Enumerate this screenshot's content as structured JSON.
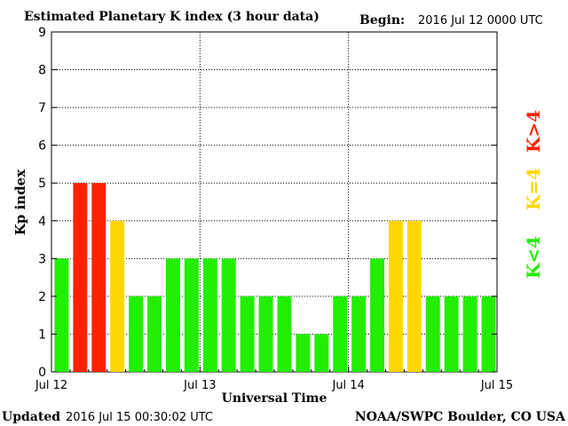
{
  "chart_data": {
    "type": "bar",
    "title": "Estimated Planetary K index (3 hour data)",
    "begin_label": "Begin:",
    "begin_value": "2016 Jul 12 0000 UTC",
    "xlabel": "Universal Time",
    "ylabel": "Kp index",
    "ylim": [
      0,
      9
    ],
    "yticks": [
      "0",
      "1",
      "2",
      "3",
      "4",
      "5",
      "6",
      "7",
      "8",
      "9"
    ],
    "xticks": [
      "Jul 12",
      "Jul 13",
      "Jul 14",
      "Jul 15"
    ],
    "values": [
      3,
      5,
      5,
      4,
      2,
      2,
      3,
      3,
      3,
      3,
      2,
      2,
      2,
      1,
      1,
      2,
      2,
      3,
      4,
      4,
      2,
      2,
      2,
      2
    ],
    "grid": true,
    "legend": [
      {
        "label": "K>4",
        "color": "#ff2200"
      },
      {
        "label": "K=4",
        "color": "#ffd700"
      },
      {
        "label": "K<4",
        "color": "#22ee00"
      }
    ],
    "colors": {
      "high": "#ff2200",
      "equal": "#ffd700",
      "low": "#22ee00"
    }
  },
  "footer": {
    "updated_label": "Updated",
    "updated_value": "2016 Jul 15 00:30:02 UTC",
    "source": "NOAA/SWPC Boulder, CO USA"
  }
}
